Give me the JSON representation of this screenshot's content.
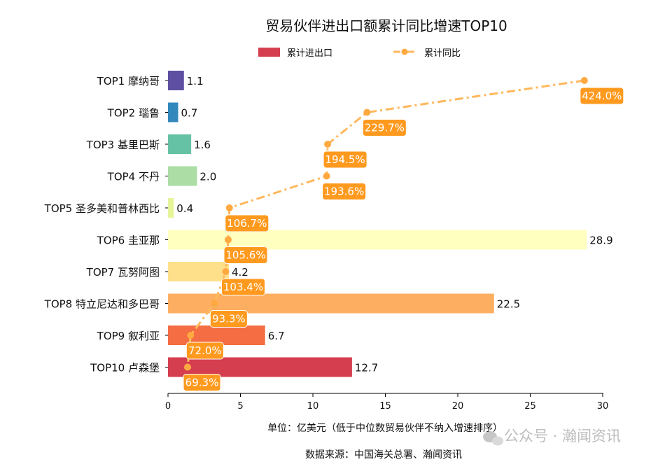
{
  "chart_data": {
    "type": "bar",
    "orientation": "horizontal",
    "title": "贸易伙伴进出口额累计同比增速TOP10",
    "xlabel": "单位：亿美元（低于中位数贸易伙伴不纳入增速排序）",
    "source": "数据来源：中国海关总署、瀚闻资讯",
    "xlim": [
      0,
      30
    ],
    "xticks": [
      "0",
      "5",
      "10",
      "15",
      "20",
      "25",
      "30"
    ],
    "grid": false,
    "legend_position": "top-center",
    "categories": [
      "TOP1 摩纳哥",
      "TOP2 瑙鲁",
      "TOP3 基里巴斯",
      "TOP4 不丹",
      "TOP5 圣多美和普林西比",
      "TOP6 圭亚那",
      "TOP7 瓦努阿图",
      "TOP8 特立尼达和多巴哥",
      "TOP9 叙利亚",
      "TOP10 卢森堡"
    ],
    "series": [
      {
        "name": "累计进出口",
        "type": "bar",
        "values": [
          1.1,
          0.7,
          1.6,
          2.0,
          0.4,
          28.9,
          4.2,
          22.5,
          6.7,
          12.7
        ],
        "labels": [
          "1.1",
          "0.7",
          "1.6",
          "2.0",
          "0.4",
          "28.9",
          "4.2",
          "22.5",
          "6.7",
          "12.7"
        ],
        "colors": [
          "#5e4fa2",
          "#3288bd",
          "#66c2a5",
          "#abdda4",
          "#e6f598",
          "#ffffbf",
          "#fee08b",
          "#fdae61",
          "#f46d43",
          "#d53e4f"
        ]
      },
      {
        "name": "累计同比",
        "type": "line",
        "unit": "%",
        "values": [
          424.0,
          229.7,
          194.5,
          193.6,
          106.7,
          105.6,
          103.4,
          93.3,
          72.0,
          69.3
        ],
        "labels": [
          "424.0%",
          "229.7%",
          "194.5%",
          "193.6%",
          "106.7%",
          "105.6%",
          "103.4%",
          "93.3%",
          "72.0%",
          "69.3%"
        ],
        "color": "#ffb85c",
        "label_color": "#ff9a1f"
      }
    ]
  },
  "watermark": "公众号 · 瀚闻资讯"
}
